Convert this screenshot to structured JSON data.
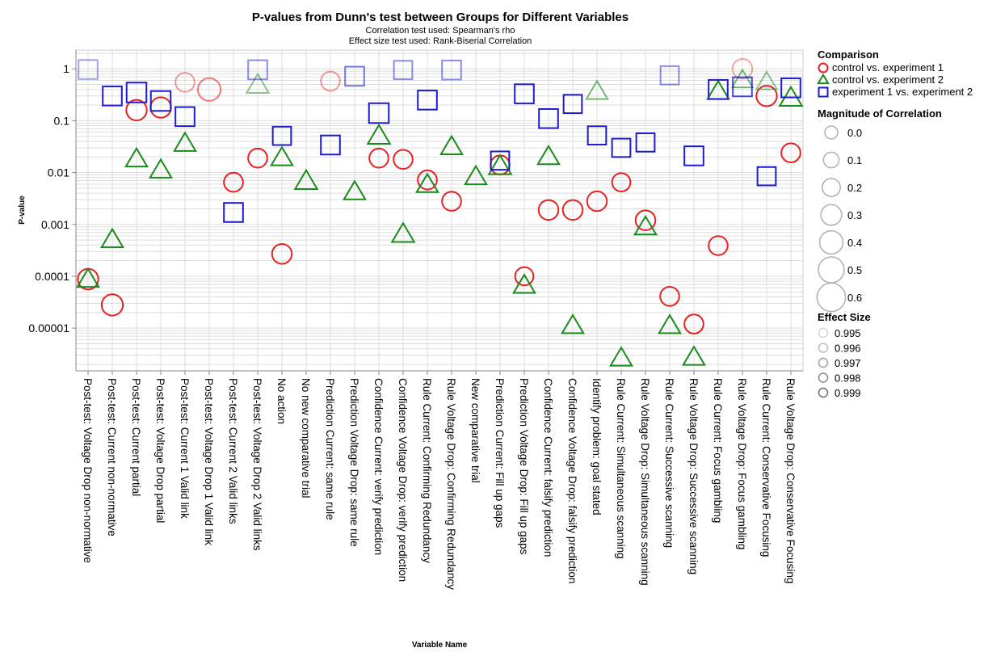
{
  "chart_data": {
    "type": "scatter",
    "title": "P-values from Dunn's test between Groups for Different Variables",
    "subtitles": [
      "Correlation test used: Spearman's rho",
      "Effect size test used: Rank-Biserial Correlation"
    ],
    "xlabel": "Variable Name",
    "ylabel": "P-value",
    "y_scale": "log",
    "ylim": [
      1.5e-06,
      2.3
    ],
    "y_ticks": [
      {
        "value": 1,
        "label": "1"
      },
      {
        "value": 0.1,
        "label": "0.1"
      },
      {
        "value": 0.01,
        "label": "0.01"
      },
      {
        "value": 0.001,
        "label": "0.001"
      },
      {
        "value": 0.0001,
        "label": "0.0001"
      },
      {
        "value": 1e-05,
        "label": "0.00001"
      }
    ],
    "grid": true,
    "legend_position": "right",
    "categories": [
      "Post-test: Voltage Drop non-normative",
      "Post-test: Current non-normative",
      "Post-test: Current partial",
      "Post-test: Voltage Drop partial",
      "Post-test: Current 1 Valid link",
      "Post-test: Voltage Drop 1 Valid link",
      "Post-test: Current 2 Valid links",
      "Post-test: Voltage Drop 2 Valid links",
      "No action",
      "No new comparative trial",
      "Prediction Current: same rule",
      "Prediction Voltage Drop: same rule",
      "Confidence Current: verify prediction",
      "Confidence Voltage Drop: verify prediction",
      "Rule Current: Confirming Redundancy",
      "Rule Voltage Drop: Confirming Redundancy",
      "New comparative trial",
      "Prediction Current: Fill up gaps",
      "Prediction Voltage Drop: Fill up gaps",
      "Confidence Current: falsify prediction",
      "Confidence Voltage Drop: falsify prediction",
      "Identify problem: goal stated",
      "Rule Current: Simultaneous scanning",
      "Rule Voltage Drop: Simultaneous scanning",
      "Rule Current: Successive scanning",
      "Rule Voltage Drop: Successive scanning",
      "Rule Current: Focus gambling",
      "Rule Voltage Drop: Focus gambling",
      "Rule Current: Conservative Focusing",
      "Rule Voltage Drop: Conservative Focusing"
    ],
    "series": [
      {
        "name": "control vs. experiment 1",
        "shape": "circle",
        "color": "#e8201e",
        "points": [
          {
            "x": "Post-test: Voltage Drop non-normative",
            "p": 8.8e-05,
            "corr": 0.3,
            "opacity": 1
          },
          {
            "x": "Post-test: Current non-normative",
            "p": 2.8e-05,
            "corr": 0.35,
            "opacity": 1
          },
          {
            "x": "Post-test: Current partial",
            "p": 0.16,
            "corr": 0.3,
            "opacity": 1
          },
          {
            "x": "Post-test: Voltage Drop partial",
            "p": 0.18,
            "corr": 0.3,
            "opacity": 1
          },
          {
            "x": "Post-test: Current 1 Valid link",
            "p": 0.55,
            "corr": 0.2,
            "opacity": 0.45
          },
          {
            "x": "Post-test: Voltage Drop 1 Valid link",
            "p": 0.4,
            "corr": 0.45,
            "opacity": 0.6
          },
          {
            "x": "Post-test: Current 2 Valid links",
            "p": 0.0065,
            "corr": 0.2,
            "opacity": 1
          },
          {
            "x": "Post-test: Voltage Drop 2 Valid links",
            "p": 0.019,
            "corr": 0.2,
            "opacity": 1
          },
          {
            "x": "No action",
            "p": 0.00027,
            "corr": 0.25,
            "opacity": 1
          },
          {
            "x": "Prediction Current: same rule",
            "p": 0.58,
            "corr": 0.2,
            "opacity": 0.45
          },
          {
            "x": "Confidence Current: verify prediction",
            "p": 0.019,
            "corr": 0.2,
            "opacity": 1
          },
          {
            "x": "Confidence Voltage Drop: verify prediction",
            "p": 0.018,
            "corr": 0.2,
            "opacity": 1
          },
          {
            "x": "Rule Current: Confirming Redundancy",
            "p": 0.0072,
            "corr": 0.2,
            "opacity": 1
          },
          {
            "x": "Rule Voltage Drop: Confirming Redundancy",
            "p": 0.0028,
            "corr": 0.2,
            "opacity": 1
          },
          {
            "x": "Prediction Current: Fill up gaps",
            "p": 0.014,
            "corr": 0.2,
            "opacity": 1
          },
          {
            "x": "Prediction Voltage Drop: Fill up gaps",
            "p": 0.0001,
            "corr": 0.15,
            "opacity": 1
          },
          {
            "x": "Confidence Current: falsify prediction",
            "p": 0.0019,
            "corr": 0.25,
            "opacity": 1
          },
          {
            "x": "Confidence Voltage Drop: falsify prediction",
            "p": 0.0019,
            "corr": 0.25,
            "opacity": 1
          },
          {
            "x": "Identify problem: goal stated",
            "p": 0.0028,
            "corr": 0.25,
            "opacity": 1
          },
          {
            "x": "Rule Current: Simultaneous scanning",
            "p": 0.0065,
            "corr": 0.15,
            "opacity": 1
          },
          {
            "x": "Rule Voltage Drop: Simultaneous scanning",
            "p": 0.0012,
            "corr": 0.25,
            "opacity": 1
          },
          {
            "x": "Rule Current: Successive scanning",
            "p": 4.1e-05,
            "corr": 0.2,
            "opacity": 1
          },
          {
            "x": "Rule Voltage Drop: Successive scanning",
            "p": 1.2e-05,
            "corr": 0.2,
            "opacity": 1
          },
          {
            "x": "Rule Current: Focus gambling",
            "p": 0.00039,
            "corr": 0.2,
            "opacity": 1
          },
          {
            "x": "Rule Voltage Drop: Focus gambling",
            "p": 1.0,
            "corr": 0.25,
            "opacity": 0.4
          },
          {
            "x": "Rule Current: Conservative Focusing",
            "p": 0.3,
            "corr": 0.3,
            "opacity": 1
          },
          {
            "x": "Rule Voltage Drop: Conservative Focusing",
            "p": 0.024,
            "corr": 0.2,
            "opacity": 1
          }
        ]
      },
      {
        "name": "control vs. experiment 2",
        "shape": "triangle",
        "color": "#1a8a1a",
        "points": [
          {
            "x": "Post-test: Voltage Drop non-normative",
            "p": 8.6e-05,
            "corr": 0.2,
            "opacity": 1
          },
          {
            "x": "Post-test: Current non-normative",
            "p": 0.0005,
            "corr": 0.2,
            "opacity": 1
          },
          {
            "x": "Post-test: Current partial",
            "p": 0.018,
            "corr": 0.2,
            "opacity": 1
          },
          {
            "x": "Post-test: Voltage Drop partial",
            "p": 0.011,
            "corr": 0.2,
            "opacity": 1
          },
          {
            "x": "Post-test: Current 1 Valid link",
            "p": 0.036,
            "corr": 0.2,
            "opacity": 1
          },
          {
            "x": "Post-test: Voltage Drop 2 Valid links",
            "p": 0.48,
            "corr": 0.25,
            "opacity": 0.5
          },
          {
            "x": "No action",
            "p": 0.019,
            "corr": 0.2,
            "opacity": 1
          },
          {
            "x": "No new comparative trial",
            "p": 0.0067,
            "corr": 0.25,
            "opacity": 1
          },
          {
            "x": "Prediction Voltage Drop: same rule",
            "p": 0.0042,
            "corr": 0.2,
            "opacity": 1
          },
          {
            "x": "Confidence Current: verify prediction",
            "p": 0.05,
            "corr": 0.25,
            "opacity": 1
          },
          {
            "x": "Confidence Voltage Drop: verify prediction",
            "p": 0.00064,
            "corr": 0.25,
            "opacity": 1
          },
          {
            "x": "Rule Current: Confirming Redundancy",
            "p": 0.0058,
            "corr": 0.2,
            "opacity": 1
          },
          {
            "x": "Rule Voltage Drop: Confirming Redundancy",
            "p": 0.031,
            "corr": 0.2,
            "opacity": 1
          },
          {
            "x": "New comparative trial",
            "p": 0.0082,
            "corr": 0.2,
            "opacity": 1
          },
          {
            "x": "Prediction Current: Fill up gaps",
            "p": 0.013,
            "corr": 0.25,
            "opacity": 1
          },
          {
            "x": "Prediction Voltage Drop: Fill up gaps",
            "p": 6.6e-05,
            "corr": 0.2,
            "opacity": 1
          },
          {
            "x": "Confidence Current: falsify prediction",
            "p": 0.02,
            "corr": 0.2,
            "opacity": 1
          },
          {
            "x": "Confidence Voltage Drop: falsify prediction",
            "p": 1.1e-05,
            "corr": 0.2,
            "opacity": 1
          },
          {
            "x": "Identify problem: goal stated",
            "p": 0.36,
            "corr": 0.2,
            "opacity": 0.6
          },
          {
            "x": "Rule Current: Simultaneous scanning",
            "p": 2.6e-06,
            "corr": 0.2,
            "opacity": 1
          },
          {
            "x": "Rule Voltage Drop: Simultaneous scanning",
            "p": 0.00088,
            "corr": 0.2,
            "opacity": 1
          },
          {
            "x": "Rule Current: Successive scanning",
            "p": 1.1e-05,
            "corr": 0.2,
            "opacity": 1
          },
          {
            "x": "Rule Voltage Drop: Successive scanning",
            "p": 2.7e-06,
            "corr": 0.2,
            "opacity": 1
          },
          {
            "x": "Rule Current: Focus gambling",
            "p": 0.36,
            "corr": 0.2,
            "opacity": 1
          },
          {
            "x": "Rule Voltage Drop: Focus gambling",
            "p": 0.6,
            "corr": 0.15,
            "opacity": 0.6
          },
          {
            "x": "Rule Current: Conservative Focusing",
            "p": 0.55,
            "corr": 0.15,
            "opacity": 0.5
          },
          {
            "x": "Rule Voltage Drop: Conservative Focusing",
            "p": 0.27,
            "corr": 0.25,
            "opacity": 1
          }
        ]
      },
      {
        "name": "experiment 1 vs. experiment 2",
        "shape": "square",
        "color": "#1c1ccc",
        "points": [
          {
            "x": "Post-test: Voltage Drop non-normative",
            "p": 0.97,
            "corr": 0.2,
            "opacity": 0.4
          },
          {
            "x": "Post-test: Current non-normative",
            "p": 0.3,
            "corr": 0.2,
            "opacity": 1
          },
          {
            "x": "Post-test: Current partial",
            "p": 0.35,
            "corr": 0.25,
            "opacity": 1
          },
          {
            "x": "Post-test: Voltage Drop partial",
            "p": 0.24,
            "corr": 0.25,
            "opacity": 1
          },
          {
            "x": "Post-test: Current 1 Valid link",
            "p": 0.12,
            "corr": 0.2,
            "opacity": 1
          },
          {
            "x": "Post-test: Current 2 Valid links",
            "p": 0.0017,
            "corr": 0.2,
            "opacity": 1
          },
          {
            "x": "Post-test: Voltage Drop 2 Valid links",
            "p": 0.96,
            "corr": 0.2,
            "opacity": 0.5
          },
          {
            "x": "No action",
            "p": 0.051,
            "corr": 0.15,
            "opacity": 1
          },
          {
            "x": "Prediction Current: same rule",
            "p": 0.034,
            "corr": 0.2,
            "opacity": 1
          },
          {
            "x": "Prediction Voltage Drop: same rule",
            "p": 0.72,
            "corr": 0.2,
            "opacity": 0.6
          },
          {
            "x": "Confidence Current: verify prediction",
            "p": 0.14,
            "corr": 0.25,
            "opacity": 1
          },
          {
            "x": "Confidence Voltage Drop: verify prediction",
            "p": 0.95,
            "corr": 0.15,
            "opacity": 0.5
          },
          {
            "x": "Rule Current: Confirming Redundancy",
            "p": 0.25,
            "corr": 0.2,
            "opacity": 1
          },
          {
            "x": "Rule Voltage Drop: Confirming Redundancy",
            "p": 0.95,
            "corr": 0.2,
            "opacity": 0.5
          },
          {
            "x": "Prediction Current: Fill up gaps",
            "p": 0.017,
            "corr": 0.15,
            "opacity": 1
          },
          {
            "x": "Prediction Voltage Drop: Fill up gaps",
            "p": 0.33,
            "corr": 0.2,
            "opacity": 1
          },
          {
            "x": "Confidence Current: falsify prediction",
            "p": 0.11,
            "corr": 0.2,
            "opacity": 1
          },
          {
            "x": "Confidence Voltage Drop: falsify prediction",
            "p": 0.21,
            "corr": 0.15,
            "opacity": 1
          },
          {
            "x": "Identify problem: goal stated",
            "p": 0.052,
            "corr": 0.15,
            "opacity": 1
          },
          {
            "x": "Rule Current: Simultaneous scanning",
            "p": 0.03,
            "corr": 0.15,
            "opacity": 1
          },
          {
            "x": "Rule Voltage Drop: Simultaneous scanning",
            "p": 0.038,
            "corr": 0.15,
            "opacity": 1
          },
          {
            "x": "Rule Current: Successive scanning",
            "p": 0.75,
            "corr": 0.15,
            "opacity": 0.5
          },
          {
            "x": "Rule Voltage Drop: Successive scanning",
            "p": 0.021,
            "corr": 0.2,
            "opacity": 1
          },
          {
            "x": "Rule Current: Focus gambling",
            "p": 0.4,
            "corr": 0.2,
            "opacity": 1
          },
          {
            "x": "Rule Voltage Drop: Focus gambling",
            "p": 0.45,
            "corr": 0.2,
            "opacity": 0.8
          },
          {
            "x": "Rule Current: Conservative Focusing",
            "p": 0.0085,
            "corr": 0.15,
            "opacity": 1
          },
          {
            "x": "Rule Voltage Drop: Conservative Focusing",
            "p": 0.43,
            "corr": 0.2,
            "opacity": 1
          }
        ]
      }
    ],
    "legend": {
      "comparison_title": "Comparison",
      "correlation_title": "Magnitude of Correlation",
      "correlation_values": [
        "0.0",
        "0.1",
        "0.2",
        "0.3",
        "0.4",
        "0.5",
        "0.6"
      ],
      "effect_title": "Effect Size",
      "effect_values": [
        "0.995",
        "0.996",
        "0.997",
        "0.998",
        "0.999"
      ]
    }
  }
}
